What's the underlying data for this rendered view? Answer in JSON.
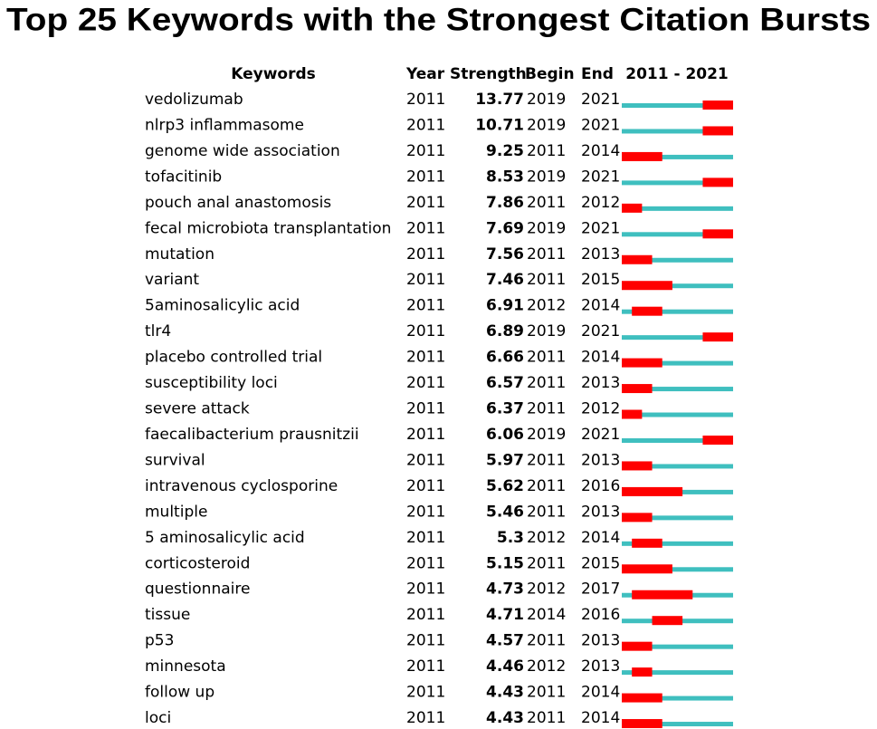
{
  "title": "Top 25 Keywords with the Strongest Citation Bursts",
  "header": {
    "keyword": "Keywords",
    "year": "Year",
    "strength": "Strength",
    "begin": "Begin",
    "end": "End",
    "range": {
      "label": "2011 - 2021",
      "start": 2011,
      "end": 2021
    }
  },
  "colors": {
    "baseline": "#3fbfbf",
    "burst": "#ff0000"
  },
  "rows": [
    {
      "keyword": "vedolizumab",
      "year": 2011,
      "strength": 13.77,
      "begin": 2019,
      "end": 2021
    },
    {
      "keyword": "nlrp3 inflammasome",
      "year": 2011,
      "strength": 10.71,
      "begin": 2019,
      "end": 2021
    },
    {
      "keyword": "genome wide association",
      "year": 2011,
      "strength": 9.25,
      "begin": 2011,
      "end": 2014
    },
    {
      "keyword": "tofacitinib",
      "year": 2011,
      "strength": 8.53,
      "begin": 2019,
      "end": 2021
    },
    {
      "keyword": "pouch anal anastomosis",
      "year": 2011,
      "strength": 7.86,
      "begin": 2011,
      "end": 2012
    },
    {
      "keyword": "fecal microbiota transplantation",
      "year": 2011,
      "strength": 7.69,
      "begin": 2019,
      "end": 2021
    },
    {
      "keyword": "mutation",
      "year": 2011,
      "strength": 7.56,
      "begin": 2011,
      "end": 2013
    },
    {
      "keyword": "variant",
      "year": 2011,
      "strength": 7.46,
      "begin": 2011,
      "end": 2015
    },
    {
      "keyword": "5aminosalicylic acid",
      "year": 2011,
      "strength": 6.91,
      "begin": 2012,
      "end": 2014
    },
    {
      "keyword": "tlr4",
      "year": 2011,
      "strength": 6.89,
      "begin": 2019,
      "end": 2021
    },
    {
      "keyword": "placebo controlled trial",
      "year": 2011,
      "strength": 6.66,
      "begin": 2011,
      "end": 2014
    },
    {
      "keyword": "susceptibility loci",
      "year": 2011,
      "strength": 6.57,
      "begin": 2011,
      "end": 2013
    },
    {
      "keyword": "severe attack",
      "year": 2011,
      "strength": 6.37,
      "begin": 2011,
      "end": 2012
    },
    {
      "keyword": "faecalibacterium prausnitzii",
      "year": 2011,
      "strength": 6.06,
      "begin": 2019,
      "end": 2021
    },
    {
      "keyword": "survival",
      "year": 2011,
      "strength": 5.97,
      "begin": 2011,
      "end": 2013
    },
    {
      "keyword": "intravenous cyclosporine",
      "year": 2011,
      "strength": 5.62,
      "begin": 2011,
      "end": 2016
    },
    {
      "keyword": "multiple",
      "year": 2011,
      "strength": 5.46,
      "begin": 2011,
      "end": 2013
    },
    {
      "keyword": "5 aminosalicylic acid",
      "year": 2011,
      "strength": 5.3,
      "begin": 2012,
      "end": 2014
    },
    {
      "keyword": "corticosteroid",
      "year": 2011,
      "strength": 5.15,
      "begin": 2011,
      "end": 2015
    },
    {
      "keyword": "questionnaire",
      "year": 2011,
      "strength": 4.73,
      "begin": 2012,
      "end": 2017
    },
    {
      "keyword": "tissue",
      "year": 2011,
      "strength": 4.71,
      "begin": 2014,
      "end": 2016
    },
    {
      "keyword": "p53",
      "year": 2011,
      "strength": 4.57,
      "begin": 2011,
      "end": 2013
    },
    {
      "keyword": "minnesota",
      "year": 2011,
      "strength": 4.46,
      "begin": 2012,
      "end": 2013
    },
    {
      "keyword": "follow up",
      "year": 2011,
      "strength": 4.43,
      "begin": 2011,
      "end": 2014
    },
    {
      "keyword": "loci",
      "year": 2011,
      "strength": 4.43,
      "begin": 2011,
      "end": 2014
    }
  ]
}
